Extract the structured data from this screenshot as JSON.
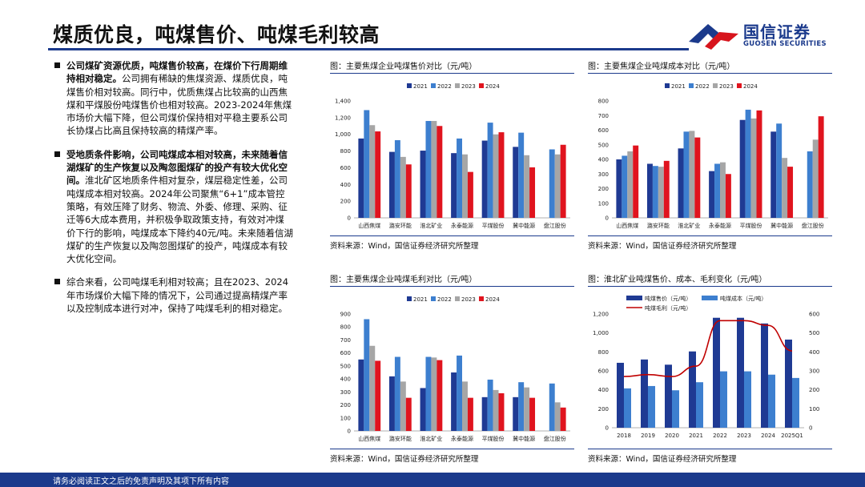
{
  "header": {
    "title": "煤质优良，吨煤售价、吨煤毛利较高",
    "logo_cn": "国信证券",
    "logo_en": "GUOSEN SECURITIES",
    "brand_color": "#1b3a8c",
    "accent_color": "#d7141c"
  },
  "bullets": [
    {
      "bold": "公司煤矿资源优质，吨煤售价较高，在煤价下行周期维持相对稳定。",
      "text": "公司拥有稀缺的焦煤资源、煤质优良，吨煤售价相对较高。同行中，优质焦煤占比较高的山西焦煤和平煤股份吨煤售价也相对较高。2023-2024年焦煤市场价大幅下降，但公司煤价保持相对平稳主要系公司长协煤占比高且保持较高的精煤产率。"
    },
    {
      "bold": "受地质条件影响，公司吨煤成本相对较高，未来随着信湖煤矿的生产恢复以及陶忽图煤矿的投产有较大优化空间。",
      "text": "淮北矿区地质条件相对复杂，煤层稳定性差，公司吨煤成本相对较高。2024年公司聚焦“6+1”成本管控策略，有效压降了财务、物流、外委、修理、采购、征迁等6大成本费用，并积极争取政策支持，有效对冲煤价下行的影响，吨煤成本下降约40元/吨。未来随着信湖煤矿的生产恢复以及陶忽图煤矿的投产，吨煤成本有较大优化空间。"
    },
    {
      "bold": "",
      "text": "综合来看，公司吨煤毛利相对较高；且在2023、2024年市场煤价大幅下降的情况下，公司通过提高精煤产率以及控制成本进行对冲，保持了吨煤毛利的相对稳定。"
    }
  ],
  "panels": {
    "p1": {
      "title": "图：主要焦煤企业吨煤售价对比（元/吨）",
      "source": "资料来源：Wind，国信证券经济研究所整理"
    },
    "p2": {
      "title": "图：主要焦煤企业吨煤成本对比（元/吨）",
      "source": "资料来源：Wind，国信证券经济研究所整理"
    },
    "p3": {
      "title": "图：主要焦煤企业吨煤毛利对比（元/吨）",
      "source": "资料来源：Wind，国信证券经济研究所整理"
    },
    "p4": {
      "title": "图：淮北矿业吨煤售价、成本、毛利变化（元/吨）",
      "source": "资料来源：Wind，国信证券经济研究所整理"
    }
  },
  "footer": {
    "text": "请务必阅读正文之后的免责声明及其项下所有内容"
  },
  "chart_data": [
    {
      "type": "bar",
      "categories": [
        "山西焦煤",
        "潞安环能",
        "淮北矿业",
        "永泰能源",
        "平煤股份",
        "冀中能源",
        "盘江股份"
      ],
      "series": [
        {
          "name": "2021",
          "color": "#1f3a93",
          "values": [
            950,
            790,
            805,
            775,
            925,
            850,
            null
          ]
        },
        {
          "name": "2022",
          "color": "#3d7fcf",
          "values": [
            1290,
            930,
            1160,
            950,
            1140,
            1020,
            820
          ]
        },
        {
          "name": "2023",
          "color": "#a6a6a6",
          "values": [
            1110,
            730,
            1160,
            760,
            1000,
            750,
            760
          ]
        },
        {
          "name": "2024",
          "color": "#e0141e",
          "values": [
            1035,
            640,
            1100,
            550,
            1025,
            605,
            875
          ]
        }
      ],
      "ylim": [
        0,
        1400
      ],
      "yticks": [
        "0",
        "200",
        "400",
        "600",
        "800",
        "1,000",
        "1,200",
        "1,400"
      ],
      "legend": "top"
    },
    {
      "type": "bar",
      "categories": [
        "山西焦煤",
        "潞安环能",
        "淮北矿业",
        "永泰能源",
        "平煤股份",
        "冀中能源",
        "盘江股份"
      ],
      "series": [
        {
          "name": "2021",
          "color": "#1f3a93",
          "values": [
            400,
            370,
            475,
            320,
            670,
            590,
            null
          ]
        },
        {
          "name": "2022",
          "color": "#3d7fcf",
          "values": [
            425,
            355,
            590,
            370,
            740,
            645,
            455
          ]
        },
        {
          "name": "2023",
          "color": "#a6a6a6",
          "values": [
            455,
            350,
            595,
            380,
            680,
            410,
            535
          ]
        },
        {
          "name": "2024",
          "color": "#e0141e",
          "values": [
            495,
            390,
            550,
            300,
            735,
            350,
            695
          ]
        }
      ],
      "ylim": [
        0,
        800
      ],
      "yticks": [
        "0",
        "100",
        "200",
        "300",
        "400",
        "500",
        "600",
        "700",
        "800"
      ],
      "legend": "top"
    },
    {
      "type": "bar",
      "categories": [
        "山西焦煤",
        "潞安环能",
        "淮北矿业",
        "永泰能源",
        "平煤股份",
        "冀中能源",
        "盘江股份"
      ],
      "series": [
        {
          "name": "2021",
          "color": "#1f3a93",
          "values": [
            550,
            420,
            330,
            450,
            260,
            260,
            null
          ]
        },
        {
          "name": "2022",
          "color": "#3d7fcf",
          "values": [
            860,
            570,
            570,
            580,
            395,
            375,
            365
          ]
        },
        {
          "name": "2023",
          "color": "#a6a6a6",
          "values": [
            655,
            380,
            565,
            380,
            315,
            335,
            220
          ]
        },
        {
          "name": "2024",
          "color": "#e0141e",
          "values": [
            540,
            255,
            545,
            255,
            290,
            255,
            180
          ]
        }
      ],
      "ylim": [
        0,
        900
      ],
      "yticks": [
        "0",
        "100",
        "200",
        "300",
        "400",
        "500",
        "600",
        "700",
        "800",
        "900"
      ],
      "legend": "top"
    },
    {
      "type": "bar-line",
      "categories": [
        "2018",
        "2019",
        "2020",
        "2021",
        "2022",
        "2023",
        "2024",
        "2025Q1"
      ],
      "series": [
        {
          "name": "吨煤售价（元/吨）",
          "color": "#1f3a93",
          "axis": "left",
          "values": [
            685,
            720,
            665,
            805,
            1160,
            1160,
            1100,
            930
          ]
        },
        {
          "name": "吨煤成本（元/吨）",
          "color": "#3d7fcf",
          "axis": "left",
          "values": [
            415,
            440,
            395,
            480,
            595,
            595,
            560,
            525
          ]
        },
        {
          "name": "吨煤毛利（元/吨）",
          "color": "#c00000",
          "axis": "right",
          "type": "line",
          "values": [
            270,
            280,
            270,
            325,
            565,
            565,
            540,
            405
          ]
        }
      ],
      "ylim_left": [
        0,
        1200
      ],
      "ylim_right": [
        0,
        600
      ],
      "yticks_left": [
        "0",
        "200",
        "400",
        "600",
        "800",
        "1,000",
        "1,200"
      ],
      "yticks_right": [
        "0",
        "100",
        "200",
        "300",
        "400",
        "500",
        "600"
      ],
      "legend": "top"
    }
  ]
}
